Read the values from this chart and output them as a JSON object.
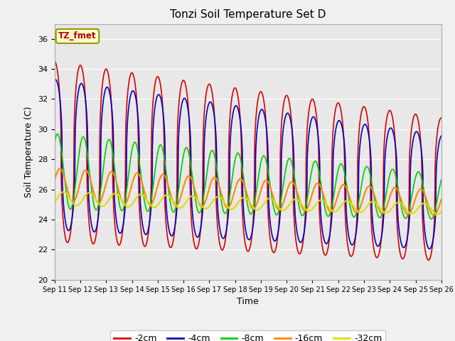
{
  "title": "Tonzi Soil Temperature Set D",
  "xlabel": "Time",
  "ylabel": "Soil Temperature (C)",
  "ylim": [
    20,
    37
  ],
  "yticks": [
    20,
    22,
    24,
    26,
    28,
    30,
    32,
    34,
    36
  ],
  "plot_bg_color": "#e8e8e8",
  "fig_bg_color": "#f0f0f0",
  "legend_label": "TZ_fmet",
  "series": {
    "-2cm": {
      "color": "#dd0000",
      "lw": 1.2
    },
    "-4cm": {
      "color": "#0000cc",
      "lw": 1.2
    },
    "-8cm": {
      "color": "#00cc00",
      "lw": 1.2
    },
    "-16cm": {
      "color": "#ff8800",
      "lw": 1.5
    },
    "-32cm": {
      "color": "#dddd00",
      "lw": 1.5
    }
  },
  "xtick_labels": [
    "Sep 11",
    "Sep 12",
    "Sep 13",
    "Sep 14",
    "Sep 15",
    "Sep 16",
    "Sep 17",
    "Sep 18",
    "Sep 19",
    "Sep 20",
    "Sep 21",
    "Sep 22",
    "Sep 23",
    "Sep 24",
    "Sep 25",
    "Sep 26"
  ],
  "n_days": 15,
  "points_per_day": 144
}
